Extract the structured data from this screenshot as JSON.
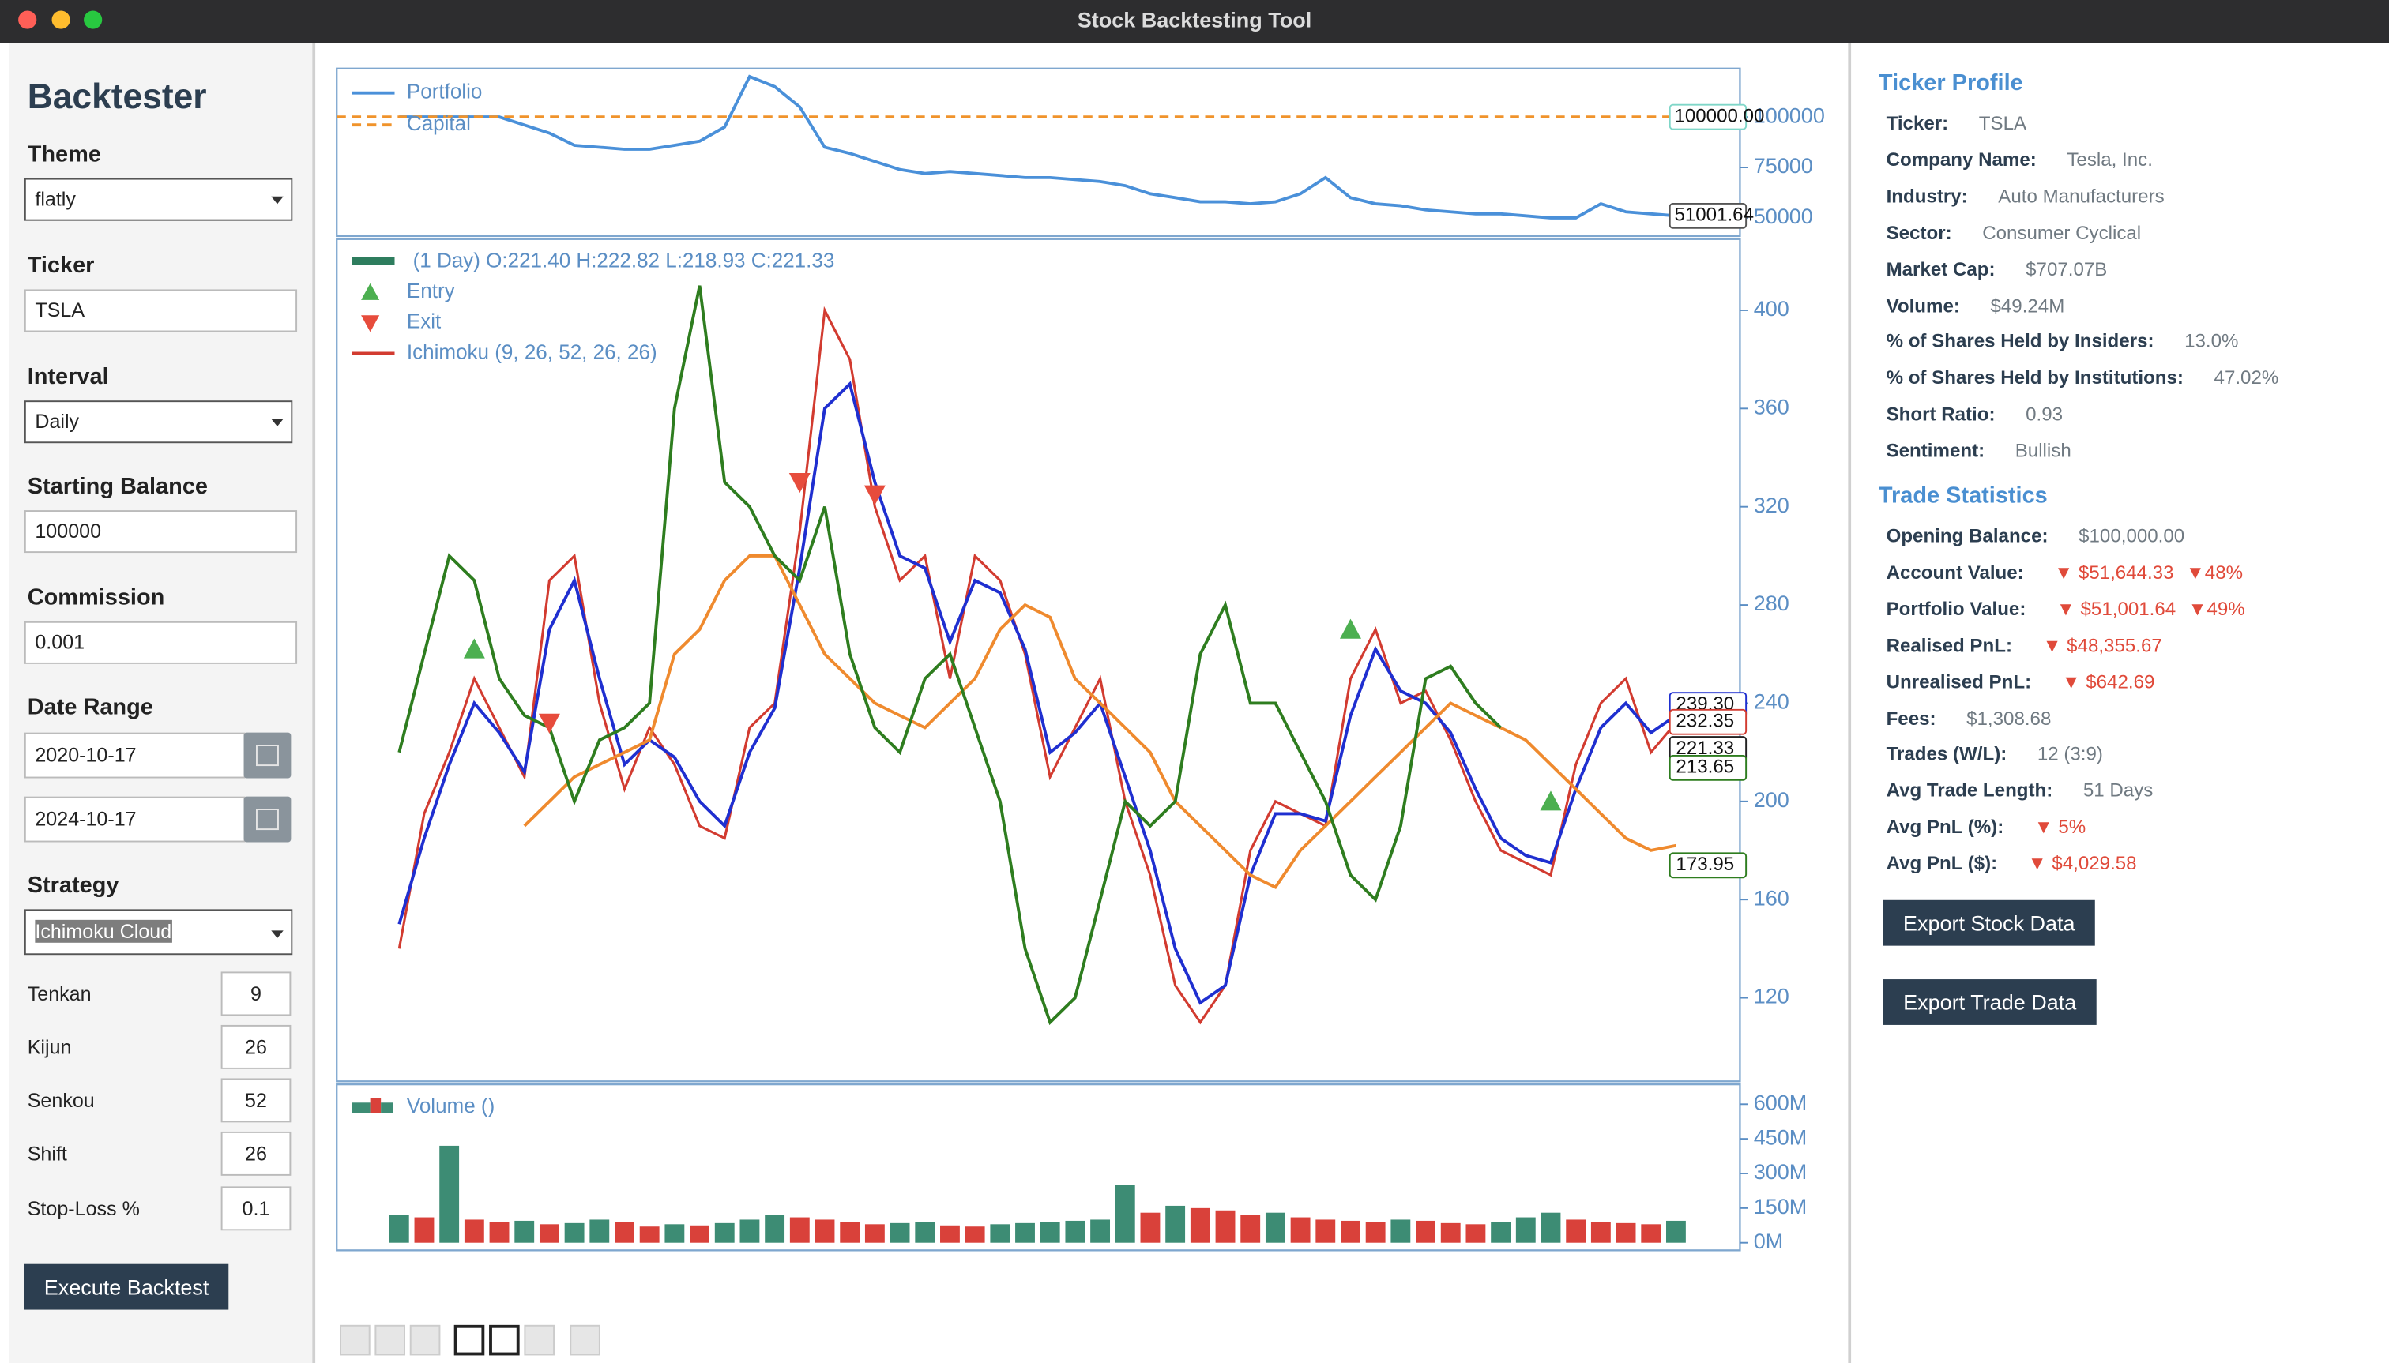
{
  "window": {
    "title": "Stock Backtesting Tool"
  },
  "sidebar": {
    "title": "Backtester",
    "fields": [
      {
        "label": "Theme",
        "value": "flatly"
      },
      {
        "label": "Ticker",
        "value": "TSLA"
      },
      {
        "label": "Interval",
        "value": "Daily"
      },
      {
        "label": "Starting Balance",
        "value": "100000"
      },
      {
        "label": "Commission",
        "value": "0.001"
      }
    ],
    "date_range": {
      "label": "Date Range",
      "start": "2020-10-17",
      "end": "2024-10-17"
    },
    "strategy": {
      "label": "Strategy",
      "value": "Ichimoku Cloud"
    },
    "params": [
      {
        "label": "Tenkan",
        "value": "9"
      },
      {
        "label": "Kijun",
        "value": "26"
      },
      {
        "label": "Senkou",
        "value": "52"
      },
      {
        "label": "Shift",
        "value": "26"
      },
      {
        "label": "Stop-Loss %",
        "value": "0.1"
      }
    ],
    "button": "Execute Backtest"
  },
  "chart_data": [
    {
      "type": "line",
      "ylim": [
        41000,
        124000
      ],
      "yticks": [
        50000,
        75000,
        100000
      ],
      "series": [
        {
          "name": "Portfolio",
          "color": "#4a90d9",
          "values": [
            100000,
            100000,
            100000,
            100000,
            100000,
            96000,
            92000,
            86000,
            85000,
            84000,
            84000,
            86000,
            88000,
            95000,
            120000,
            115000,
            105000,
            85000,
            82000,
            78000,
            74000,
            72000,
            73000,
            72000,
            71000,
            70000,
            70000,
            69000,
            68000,
            66000,
            62000,
            60000,
            58000,
            58000,
            57000,
            58000,
            62000,
            70000,
            60000,
            57000,
            56000,
            54000,
            53000,
            52000,
            52000,
            51000,
            50000,
            50000,
            57000,
            53000,
            52000,
            51001.64
          ],
          "value_labels": [
            null,
            null,
            null,
            null,
            null,
            null,
            null,
            null,
            null,
            null,
            null,
            null,
            null,
            null,
            null,
            null,
            null,
            null,
            null,
            null,
            null,
            null,
            null,
            null,
            null,
            null,
            null,
            null,
            null,
            null,
            null,
            null,
            null,
            null,
            null,
            null,
            null,
            null,
            null,
            null,
            null,
            null,
            null,
            null,
            null,
            null,
            null,
            null,
            null,
            null,
            null,
            "51001.64"
          ]
        },
        {
          "name": "Capital",
          "color": "#f0932b",
          "dashed": true,
          "values": [
            100000
          ],
          "value_labels": [
            "100000.00"
          ]
        }
      ]
    },
    {
      "type": "line",
      "ylim": [
        86,
        429
      ],
      "yticks": [
        120,
        160,
        200,
        240,
        280,
        320,
        360,
        400
      ],
      "series": [
        {
          "name": "(1 Day) O:221.40 H:222.82 L:218.93 C:221.33",
          "color": "#d23b30",
          "values": [
            140,
            195,
            220,
            250,
            230,
            210,
            290,
            300,
            240,
            205,
            230,
            215,
            190,
            185,
            230,
            240,
            310,
            400,
            380,
            320,
            290,
            300,
            250,
            300,
            290,
            260,
            210,
            230,
            250,
            200,
            170,
            125,
            110,
            125,
            180,
            200,
            195,
            190,
            250,
            270,
            240,
            245,
            225,
            200,
            180,
            175,
            170,
            215,
            240,
            250,
            220,
            232
          ]
        },
        {
          "name": "Ichimoku (9, 26, 52, 26, 26)",
          "color": "#1f2fd0",
          "values": [
            150,
            185,
            215,
            240,
            228,
            212,
            270,
            290,
            250,
            215,
            225,
            218,
            200,
            190,
            220,
            238,
            295,
            360,
            370,
            330,
            300,
            295,
            265,
            290,
            285,
            262,
            220,
            228,
            240,
            210,
            180,
            140,
            118,
            125,
            170,
            195,
            195,
            192,
            235,
            262,
            245,
            240,
            228,
            205,
            185,
            178,
            175,
            205,
            230,
            240,
            228,
            235
          ]
        },
        {
          "color": "#ef8a2e",
          "values": [
            null,
            null,
            null,
            null,
            null,
            190,
            200,
            210,
            215,
            220,
            225,
            260,
            270,
            290,
            300,
            300,
            280,
            260,
            250,
            240,
            235,
            230,
            240,
            250,
            270,
            280,
            275,
            250,
            240,
            230,
            220,
            200,
            190,
            180,
            170,
            165,
            180,
            190,
            200,
            210,
            220,
            230,
            240,
            235,
            230,
            225,
            215,
            205,
            195,
            185,
            180,
            182
          ]
        },
        {
          "color": "#2e7d1f",
          "values": [
            220,
            260,
            300,
            290,
            250,
            235,
            230,
            200,
            225,
            230,
            240,
            360,
            410,
            330,
            320,
            300,
            290,
            320,
            260,
            230,
            220,
            250,
            260,
            230,
            200,
            140,
            110,
            120,
            160,
            200,
            190,
            200,
            260,
            280,
            240,
            240,
            220,
            200,
            170,
            160,
            190,
            250,
            255,
            240,
            230,
            null,
            null,
            null,
            null,
            null,
            null,
            null
          ]
        }
      ],
      "markers": [
        {
          "name": "Entry",
          "color": "#4caf50",
          "symbol": "up",
          "x": [
            3,
            38,
            46
          ],
          "values": [
            262,
            270,
            200
          ]
        },
        {
          "name": "Exit",
          "color": "#e74c3c",
          "symbol": "down",
          "x": [
            6,
            16,
            19
          ],
          "values": [
            232,
            330,
            325
          ]
        }
      ],
      "price_labels": [
        {
          "value": 239.3,
          "label": "239.30",
          "color": "#1f2fd0"
        },
        {
          "value": 232.35,
          "label": "232.35",
          "color": "#d23b30"
        },
        {
          "value": 221.33,
          "label": "221.33",
          "color": "#222222"
        },
        {
          "value": 213.65,
          "label": "213.65",
          "color": "#2e7d1f"
        },
        {
          "value": 173.95,
          "label": "173.95",
          "color": "#2e7d1f"
        }
      ]
    },
    {
      "type": "bar",
      "ylim": [
        -33000000,
        686000000
      ],
      "yticks": [
        {
          "value": 0,
          "label": "0M"
        },
        {
          "value": 150000000,
          "label": "150M"
        },
        {
          "value": 300000000,
          "label": "300M"
        },
        {
          "value": 450000000,
          "label": "450M"
        },
        {
          "value": 600000000,
          "label": "600M"
        }
      ],
      "up_color": "#3d8c74",
      "down_color": "#d9413a",
      "series": [
        {
          "name": "Volume ()",
          "color": "#3d8c74",
          "values": [
            120000000,
            110000000,
            420000000,
            100000000,
            90000000,
            95000000,
            80000000,
            85000000,
            100000000,
            90000000,
            70000000,
            80000000,
            75000000,
            85000000,
            100000000,
            120000000,
            110000000,
            100000000,
            90000000,
            80000000,
            85000000,
            90000000,
            75000000,
            70000000,
            80000000,
            85000000,
            90000000,
            95000000,
            100000000,
            250000000,
            130000000,
            160000000,
            150000000,
            140000000,
            120000000,
            130000000,
            110000000,
            100000000,
            95000000,
            90000000,
            100000000,
            95000000,
            85000000,
            80000000,
            90000000,
            110000000,
            130000000,
            100000000,
            90000000,
            85000000,
            80000000,
            95000000
          ]
        }
      ]
    }
  ],
  "ticker_profile": {
    "title": "Ticker Profile",
    "rows": [
      {
        "label": "Ticker:",
        "value": "TSLA"
      },
      {
        "label": "Company Name:",
        "value": "Tesla, Inc."
      },
      {
        "label": "Industry:",
        "value": "Auto Manufacturers"
      },
      {
        "label": "Sector:",
        "value": "Consumer Cyclical"
      },
      {
        "label": "Market Cap:",
        "value": "$707.07B"
      },
      {
        "label": "Volume:",
        "value": "$49.24M"
      },
      {
        "label": "% of Shares Held by Insiders:",
        "value": "13.0%"
      },
      {
        "label": "% of Shares Held by Institutions:",
        "value": "47.02%"
      },
      {
        "label": "Short Ratio:",
        "value": "0.93"
      },
      {
        "label": "Sentiment:",
        "value": "Bullish"
      }
    ]
  },
  "trade_statistics": {
    "title": "Trade Statistics",
    "rows": [
      {
        "label": "Opening Balance:",
        "value": "$100,000.00"
      },
      {
        "label": "Account Value:",
        "value": [
          "▼ $51,644.33",
          "▼48%"
        ]
      },
      {
        "label": "Portfolio Value:",
        "value": [
          "▼ $51,001.64",
          "▼49%"
        ]
      },
      {
        "label": "Realised PnL:",
        "value": "▼ $48,355.67"
      },
      {
        "label": "Unrealised PnL:",
        "value": "▼ $642.69"
      },
      {
        "label": "Fees:",
        "value": "$1,308.68"
      },
      {
        "label": "Trades (W/L):",
        "value": "12 (3:9)"
      },
      {
        "label": "Avg Trade Length:",
        "value": "51 Days"
      },
      {
        "label": "Avg PnL (%):",
        "value": "▼ 5%"
      },
      {
        "label": "Avg PnL ($):",
        "value": "▼ $4,029.58"
      }
    ]
  },
  "export_buttons": [
    "Export Stock Data",
    "Export Trade Data"
  ]
}
